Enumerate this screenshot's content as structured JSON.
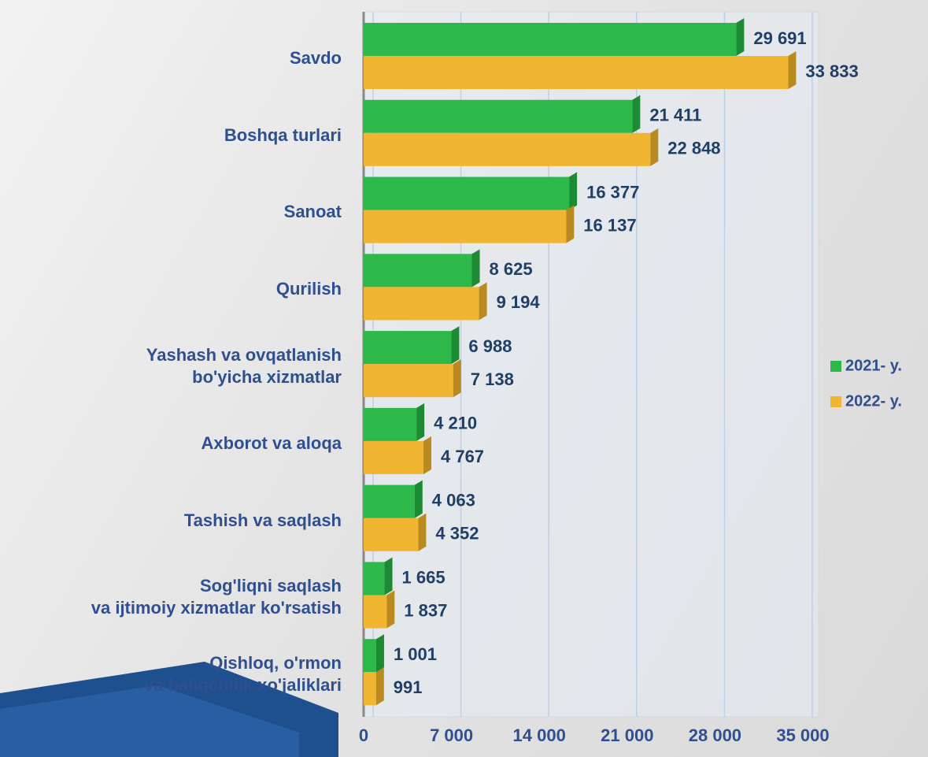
{
  "chart_data": {
    "type": "bar",
    "orientation": "horizontal",
    "categories": [
      "Savdo",
      "Boshqa turlari",
      "Sanoat",
      "Qurilish",
      "Yashash va ovqatlanish\nbo'yicha xizmatlar",
      "Axborot va aloqa",
      "Tashish va saqlash",
      "Sog'liqni saqlash\nva ijtimoiy xizmatlar ko'rsatish",
      "Qishloq, o'rmon\nva baliqchilik xo'jaliklari"
    ],
    "series": [
      {
        "name": "2021- y.",
        "color": "#2db84a",
        "values": [
          29691,
          21411,
          16377,
          8625,
          6988,
          4210,
          4063,
          1665,
          1001
        ],
        "value_labels": [
          "29 691",
          "21 411",
          "16 377",
          "8 625",
          "6 988",
          "4 210",
          "4 063",
          "1 665",
          "1 001"
        ]
      },
      {
        "name": "2022- y.",
        "color": "#f0b631",
        "values": [
          33833,
          22848,
          16137,
          9194,
          7138,
          4767,
          4352,
          1837,
          991
        ],
        "value_labels": [
          "33 833",
          "22 848",
          "16 137",
          "9 194",
          "7 138",
          "4 767",
          "4 352",
          "1 837",
          "991"
        ]
      }
    ],
    "xlim": [
      0,
      35000
    ],
    "xticks": [
      0,
      {
        "value": 7000,
        "label": "7 000"
      },
      {
        "value": 14000,
        "label": "14 000"
      },
      {
        "value": 21000,
        "label": "21 000"
      },
      {
        "value": 28000,
        "label": "28 000"
      },
      {
        "value": 35000,
        "label": "35 000"
      }
    ],
    "grid": true,
    "legend": "right"
  }
}
